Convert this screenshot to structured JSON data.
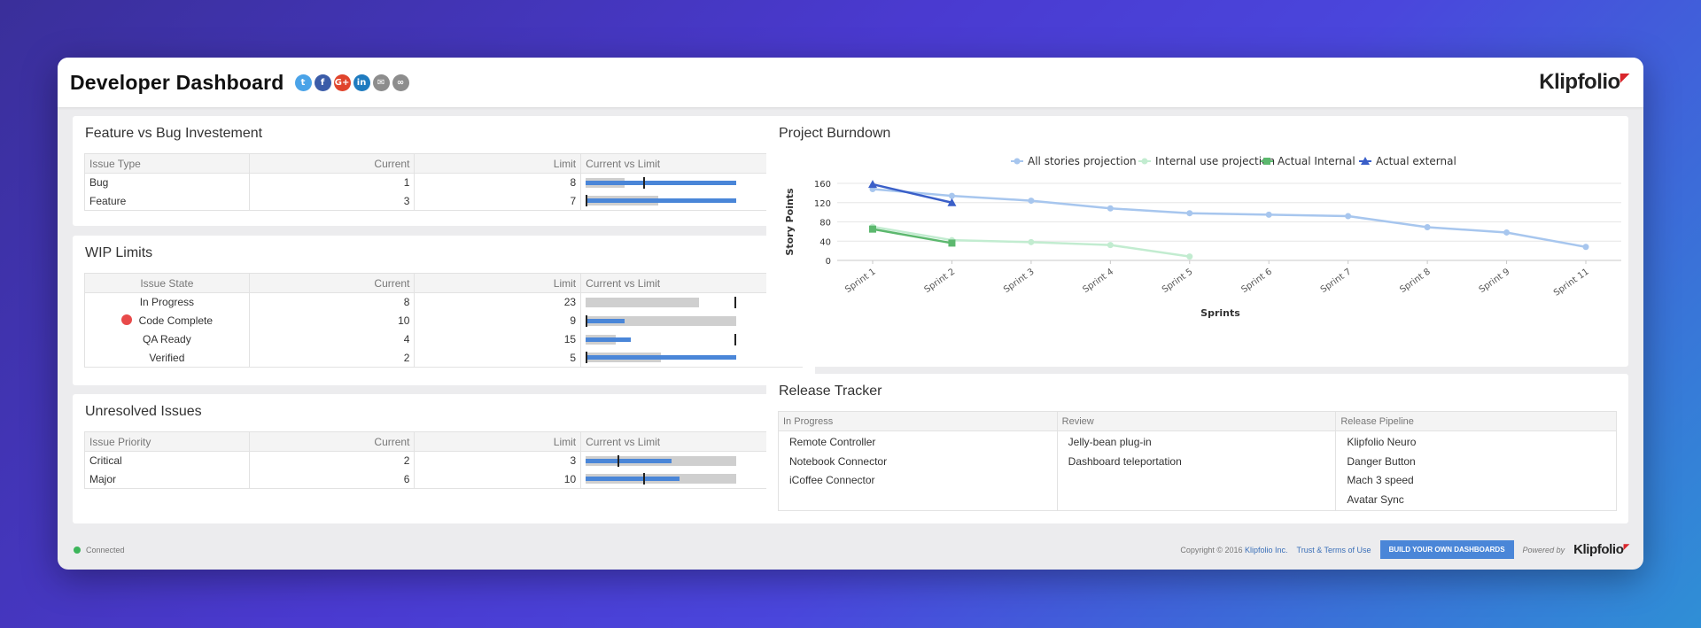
{
  "header": {
    "title": "Developer Dashboard",
    "brand": "Klipfolio",
    "share_icons": [
      {
        "name": "twitter-icon",
        "glyph": "t",
        "color": "#4aa3e8"
      },
      {
        "name": "facebook-icon",
        "glyph": "f",
        "color": "#3b5ca8"
      },
      {
        "name": "google-plus-icon",
        "glyph": "G+",
        "color": "#e0442c"
      },
      {
        "name": "linkedin-icon",
        "glyph": "in",
        "color": "#1f7bbf"
      },
      {
        "name": "email-icon",
        "glyph": "✉",
        "color": "#8d8d8d"
      },
      {
        "name": "link-icon",
        "glyph": "∞",
        "color": "#8d8d8d"
      }
    ]
  },
  "feature_bug": {
    "title": "Feature vs Bug Investement",
    "columns": [
      "Issue Type",
      "Current",
      "Limit",
      "Current vs Limit"
    ],
    "rows": [
      {
        "label": "Bug",
        "current": "1",
        "limit": "8",
        "bar_range": 0.26,
        "bar_value": 1.0,
        "target": 0.38
      },
      {
        "label": "Feature",
        "current": "3",
        "limit": "7",
        "bar_range": 0.48,
        "bar_value": 1.0,
        "target": 0.0
      }
    ]
  },
  "wip": {
    "title": "WIP Limits",
    "columns": [
      "Issue State",
      "Current",
      "Limit",
      "Current vs Limit"
    ],
    "rows": [
      {
        "label": "In Progress",
        "current": "8",
        "limit": "23",
        "bar_range": 0.75,
        "bar_value": 0.0,
        "target": 0.99,
        "alert": false
      },
      {
        "label": "Code Complete",
        "current": "10",
        "limit": "9",
        "bar_range": 1.0,
        "bar_value": 0.26,
        "target": 0.0,
        "alert": true
      },
      {
        "label": "QA Ready",
        "current": "4",
        "limit": "15",
        "bar_range": 0.2,
        "bar_value": 0.3,
        "target": 0.99,
        "alert": false
      },
      {
        "label": "Verified",
        "current": "2",
        "limit": "5",
        "bar_range": 0.5,
        "bar_value": 1.0,
        "target": 0.0,
        "alert": false
      }
    ]
  },
  "unresolved": {
    "title": "Unresolved Issues",
    "columns": [
      "Issue Priority",
      "Current",
      "Limit",
      "Current vs Limit"
    ],
    "rows": [
      {
        "label": "Critical",
        "current": "2",
        "limit": "3",
        "bar_range": 1.0,
        "bar_value": 0.57,
        "target": 0.21
      },
      {
        "label": "Major",
        "current": "6",
        "limit": "10",
        "bar_range": 1.0,
        "bar_value": 0.62,
        "target": 0.38
      }
    ]
  },
  "burndown": {
    "title": "Project Burndown",
    "chart_data": {
      "type": "line",
      "categories": [
        "Sprint 1",
        "Sprint 2",
        "Sprint 3",
        "Sprint 4",
        "Sprint 5",
        "Sprint 6",
        "Sprint 7",
        "Sprint 8",
        "Sprint 9",
        "Sprint 11"
      ],
      "xlabel": "Sprints",
      "ylabel": "Story Points",
      "ylim": [
        0,
        160
      ],
      "yticks": [
        0,
        40,
        80,
        120,
        160
      ],
      "grid": true,
      "legend": "top",
      "series": [
        {
          "name": "All stories projection",
          "color": "#a7c6ee",
          "marker": "circle",
          "values": [
            148,
            134,
            124,
            108,
            98,
            95,
            92,
            69,
            58,
            28
          ]
        },
        {
          "name": "Internal use projection",
          "color": "#c2ecd0",
          "marker": "circle",
          "values": [
            70,
            42,
            38,
            32,
            8,
            null,
            null,
            null,
            null,
            null
          ]
        },
        {
          "name": "Actual Internal",
          "color": "#5cb86e",
          "marker": "square",
          "values": [
            65,
            36,
            null,
            null,
            null,
            null,
            null,
            null,
            null,
            null
          ]
        },
        {
          "name": "Actual external",
          "color": "#3a5fc8",
          "marker": "triangle",
          "values": [
            158,
            120,
            null,
            null,
            null,
            null,
            null,
            null,
            null,
            null
          ]
        }
      ]
    }
  },
  "release": {
    "title": "Release Tracker",
    "columns": [
      "In Progress",
      "Review",
      "Release Pipeline"
    ],
    "in_progress": [
      "Remote Controller",
      "Notebook Connector",
      "iCoffee Connector"
    ],
    "review": [
      "Jelly-bean plug-in",
      "Dashboard teleportation"
    ],
    "pipeline": [
      "Klipfolio Neuro",
      "Danger Button",
      "Mach 3 speed",
      "Avatar Sync"
    ]
  },
  "footer": {
    "status": "Connected",
    "copyright_prefix": "Copyright © 2016",
    "copyright_brand": "Klipfolio Inc.",
    "terms": "Trust & Terms of Use",
    "build_button": "BUILD YOUR OWN DASHBOARDS",
    "powered_by": "Powered by",
    "brand": "Klipfolio"
  },
  "colors": {
    "bar_value": "#4a86d8",
    "bar_range": "#cfcfcf",
    "alert": "#e84a4a",
    "connected": "#3cb55a"
  }
}
